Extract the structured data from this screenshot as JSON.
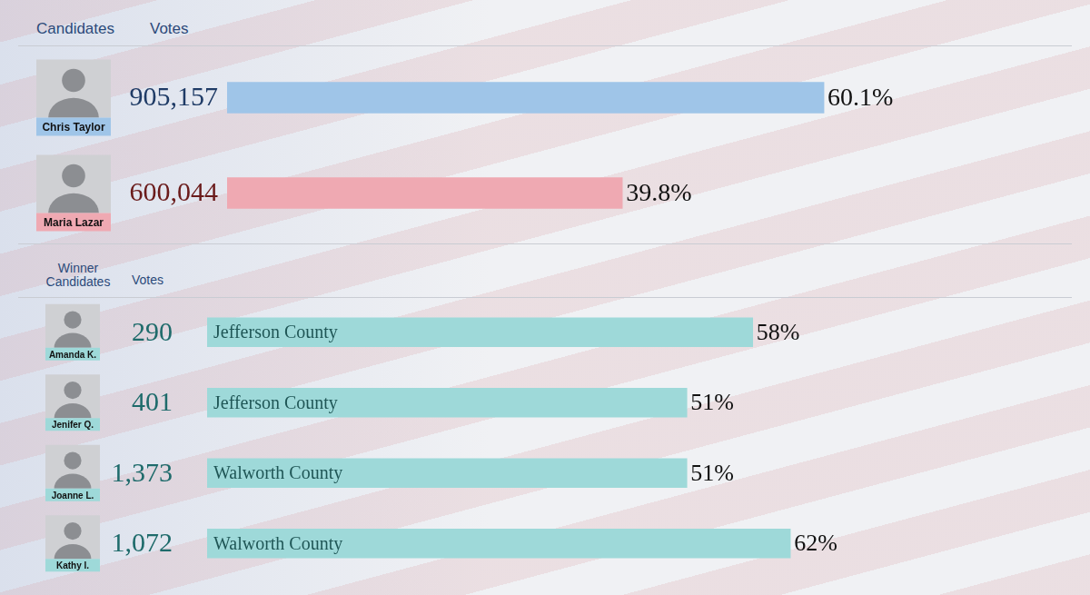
{
  "chart_data": [
    {
      "type": "bar",
      "orientation": "horizontal",
      "column_heads": [
        "Candidates",
        "Votes"
      ],
      "categories": [
        "Chris Taylor",
        "Maria Lazar"
      ],
      "votes": [
        905157,
        600044
      ],
      "values": [
        60.1,
        39.8
      ],
      "value_labels": [
        "60.1%",
        "39.8%"
      ],
      "colors": [
        "#9fc5e8",
        "#efa9b2"
      ],
      "xlim": [
        0,
        75
      ],
      "data_labels": true,
      "tick_labels": false,
      "grid": false
    },
    {
      "type": "bar",
      "orientation": "horizontal",
      "column_heads": [
        "Winner Candidates",
        "Votes"
      ],
      "categories": [
        "Amanda K.",
        "Jenifer Q.",
        "Joanne L.",
        "Kathy I."
      ],
      "votes": [
        290,
        401,
        1373,
        1072
      ],
      "bar_texts": [
        "Jefferson County",
        "Jefferson County",
        "Walworth County",
        "Walworth County"
      ],
      "values": [
        58,
        51,
        51,
        62
      ],
      "value_labels": [
        "58%",
        "51%",
        "51%",
        "62%"
      ],
      "color": "#9ed9d9",
      "xlim": [
        0,
        70
      ],
      "data_labels": true,
      "tick_labels": false,
      "grid": false
    }
  ]
}
